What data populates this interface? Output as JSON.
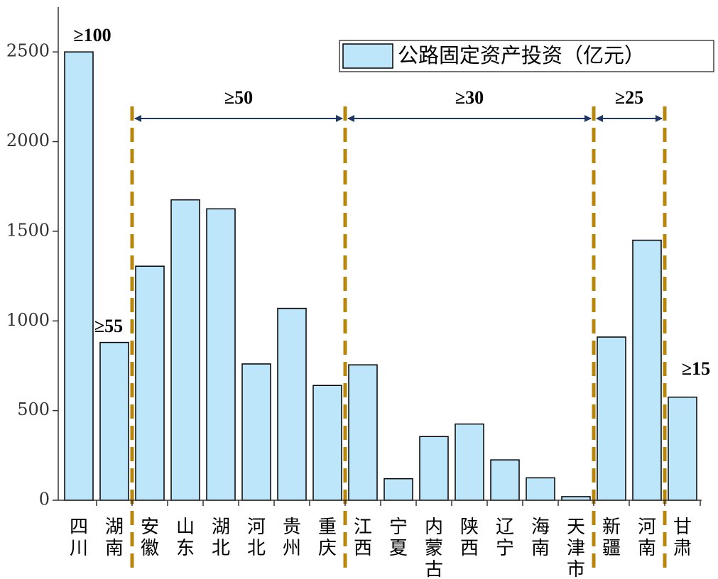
{
  "chart_data": {
    "type": "bar",
    "legend_label": "公路固定资产投资（亿元）",
    "categories": [
      "四川",
      "湖南",
      "安徽",
      "山东",
      "湖北",
      "河北",
      "贵州",
      "重庆",
      "江西",
      "宁夏",
      "内蒙古",
      "陕西",
      "辽宁",
      "海南",
      "天津市",
      "新疆",
      "河南",
      "甘肃"
    ],
    "values": [
      2500,
      880,
      1305,
      1675,
      1625,
      760,
      1070,
      640,
      755,
      120,
      355,
      425,
      225,
      125,
      20,
      910,
      1450,
      575
    ],
    "color": "#bde6fb",
    "ylim": [
      0,
      2750
    ],
    "yticks": [
      0,
      500,
      1000,
      1500,
      2000,
      2500
    ],
    "annotations": [
      "≥100",
      "≥55",
      "≥50",
      "≥30",
      "≥25",
      "≥15"
    ],
    "legend_position": "upper right"
  }
}
